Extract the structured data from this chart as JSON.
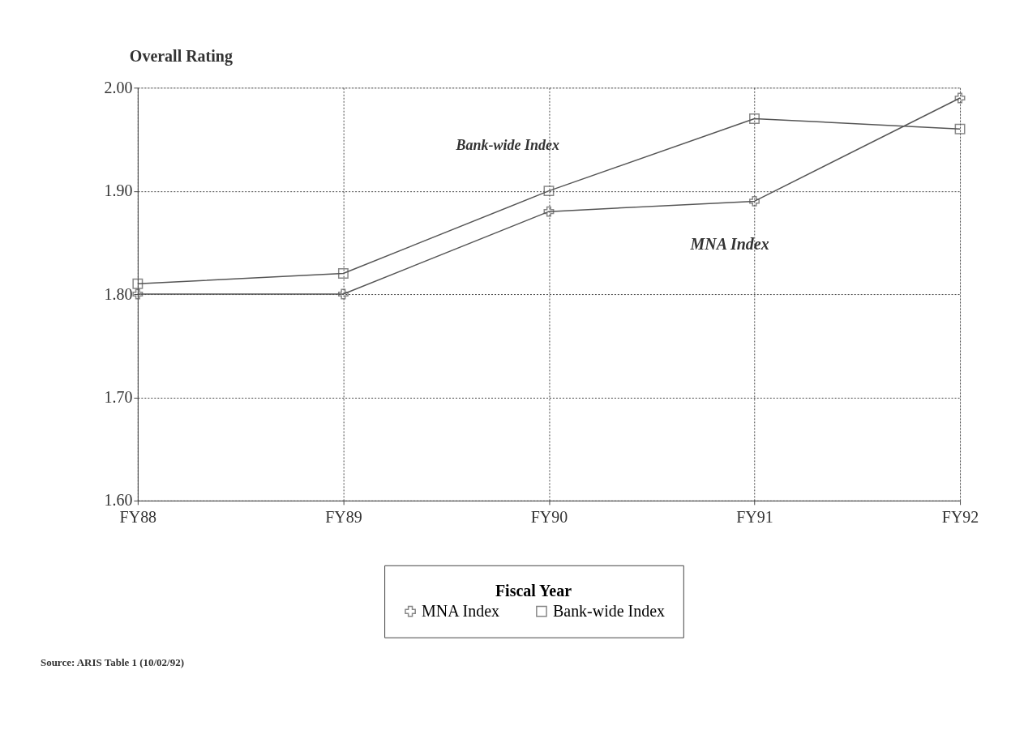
{
  "chart_data": {
    "type": "line",
    "ylabel": "Overall Rating",
    "legend_title": "Fiscal Year",
    "categories": [
      "FY88",
      "FY89",
      "FY90",
      "FY91",
      "FY92"
    ],
    "series": [
      {
        "name": "MNA Index",
        "color": "#555555",
        "marker": "cross",
        "values": [
          1.8,
          1.8,
          1.88,
          1.89,
          1.99
        ]
      },
      {
        "name": "Bank-wide Index",
        "color": "#555555",
        "marker": "square",
        "values": [
          1.81,
          1.82,
          1.9,
          1.97,
          1.96
        ]
      }
    ],
    "ylim": [
      1.6,
      2.0
    ],
    "yticks": [
      {
        "value": 1.6,
        "label": "1.60"
      },
      {
        "value": 1.7,
        "label": "1.70"
      },
      {
        "value": 1.8,
        "label": "1.80"
      },
      {
        "value": 1.9,
        "label": "1.90"
      },
      {
        "value": 2.0,
        "label": "2.00"
      }
    ],
    "grid": true,
    "legend": "bottom",
    "line_style": "solid",
    "annotations": [
      "Bank-wide Index",
      "MNA Index",
      "Source: ARIS Table 1 (10/02/92)"
    ]
  }
}
